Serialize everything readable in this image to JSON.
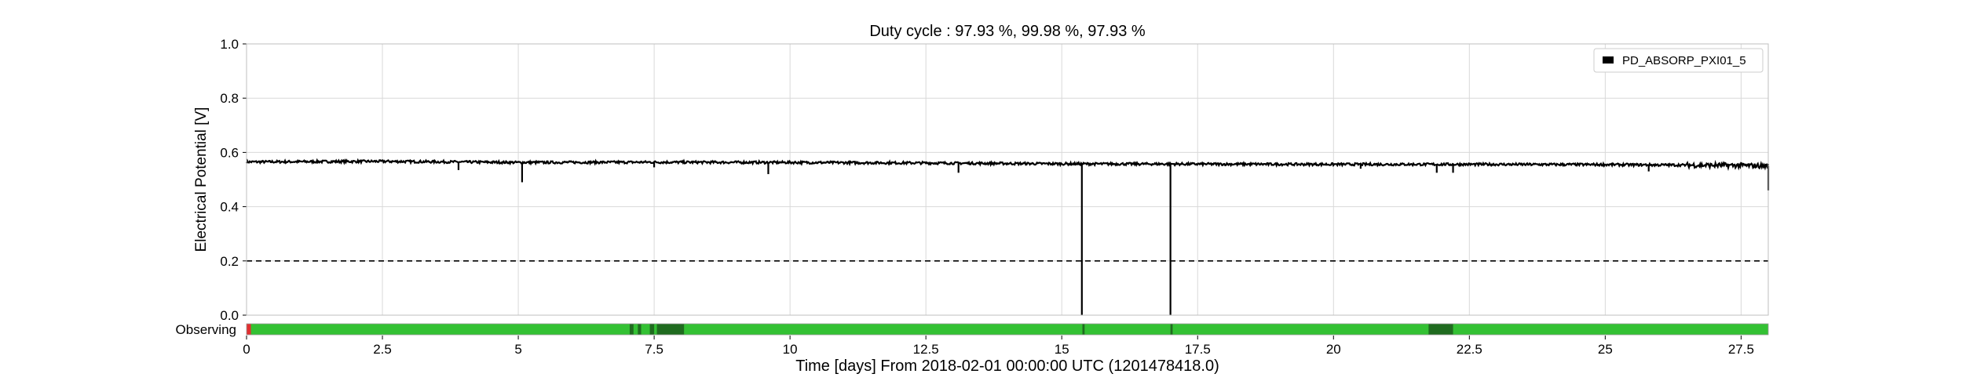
{
  "chart_data": {
    "type": "line",
    "title": "Duty cycle : 97.93 %, 99.98 %, 97.93 %",
    "xlabel": "Time [days] From 2018-02-01 00:00:00 UTC (1201478418.0)",
    "ylabel": "Electrical Potential [V]",
    "xlim": [
      0,
      28
    ],
    "ylim": [
      0,
      1.0
    ],
    "x_ticks": [
      "0",
      "2.5",
      "5",
      "7.5",
      "10",
      "12.5",
      "15",
      "17.5",
      "20",
      "22.5",
      "25",
      "27.5"
    ],
    "y_ticks": [
      "0.0",
      "0.2",
      "0.4",
      "0.6",
      "0.8",
      "1.0"
    ],
    "grid": true,
    "legend": "top-right",
    "series": [
      {
        "name": "PD_ABSORP_PXI01_5",
        "color": "#000000",
        "baseline": [
          [
            0,
            0.565
          ],
          [
            2.5,
            0.567
          ],
          [
            5,
            0.563
          ],
          [
            7.5,
            0.564
          ],
          [
            10,
            0.563
          ],
          [
            12.5,
            0.561
          ],
          [
            15,
            0.558
          ],
          [
            17.5,
            0.557
          ],
          [
            20,
            0.556
          ],
          [
            22.5,
            0.556
          ],
          [
            25,
            0.555
          ],
          [
            27.5,
            0.552
          ],
          [
            28,
            0.55
          ]
        ],
        "dips": [
          [
            3.9,
            0.535
          ],
          [
            5.07,
            0.49
          ],
          [
            7.5,
            0.545
          ],
          [
            9.6,
            0.52
          ],
          [
            13.1,
            0.525
          ],
          [
            15.37,
            0.0
          ],
          [
            17.0,
            0.0
          ],
          [
            20.5,
            0.54
          ],
          [
            21.9,
            0.525
          ],
          [
            22.2,
            0.525
          ],
          [
            25.8,
            0.53
          ],
          [
            28.0,
            0.46
          ]
        ]
      }
    ],
    "threshold": {
      "value": 0.2,
      "style": "dashed",
      "color": "#000000"
    },
    "segment_bar": {
      "label": "Observing",
      "color_active": "#33c133",
      "color_flag": "#1f6b1f",
      "color_off": "#e03030",
      "off_ranges": [
        [
          0,
          0.08
        ]
      ],
      "flag_ranges": [
        [
          7.05,
          7.12
        ],
        [
          7.2,
          7.26
        ],
        [
          7.42,
          7.5
        ],
        [
          7.55,
          8.05
        ],
        [
          15.38,
          15.42
        ],
        [
          17.0,
          17.04
        ],
        [
          21.75,
          22.2
        ]
      ]
    }
  }
}
